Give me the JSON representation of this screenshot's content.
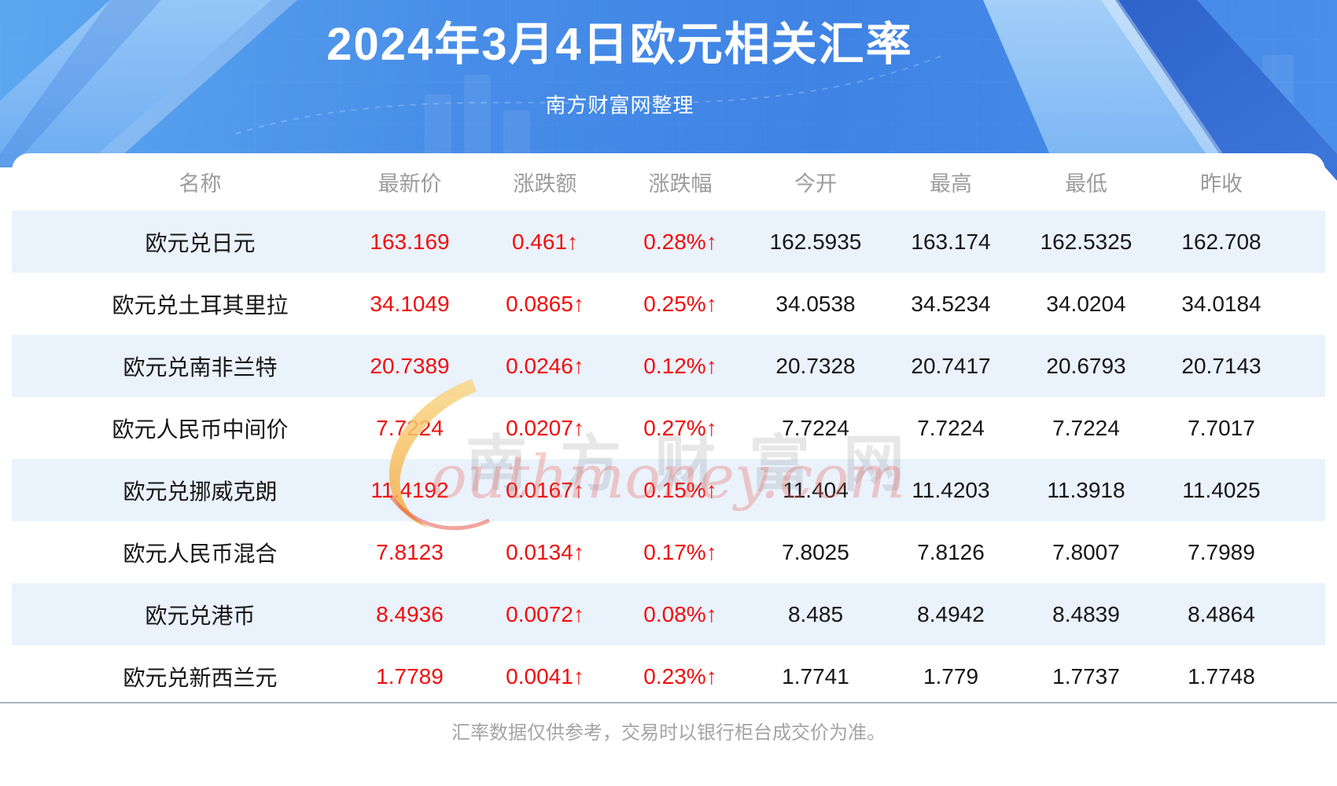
{
  "hero": {
    "title": "2024年3月4日欧元相关汇率",
    "subtitle": "南方财富网整理"
  },
  "chart_data": {
    "type": "table",
    "title": "2024年3月4日欧元相关汇率",
    "subtitle": "南方财富网整理",
    "columns": [
      "名称",
      "最新价",
      "涨跌额",
      "涨跌幅",
      "今开",
      "最高",
      "最低",
      "昨收"
    ],
    "rows": [
      [
        "欧元兑日元",
        "163.169",
        "0.461↑",
        "0.28%↑",
        "162.5935",
        "163.174",
        "162.5325",
        "162.708"
      ],
      [
        "欧元兑土耳其里拉",
        "34.1049",
        "0.0865↑",
        "0.25%↑",
        "34.0538",
        "34.5234",
        "34.0204",
        "34.0184"
      ],
      [
        "欧元兑南非兰特",
        "20.7389",
        "0.0246↑",
        "0.12%↑",
        "20.7328",
        "20.7417",
        "20.6793",
        "20.7143"
      ],
      [
        "欧元人民币中间价",
        "7.7224",
        "0.0207↑",
        "0.27%↑",
        "7.7224",
        "7.7224",
        "7.7224",
        "7.7017"
      ],
      [
        "欧元兑挪威克朗",
        "11.4192",
        "0.0167↑",
        "0.15%↑",
        "11.404",
        "11.4203",
        "11.3918",
        "11.4025"
      ],
      [
        "欧元人民币混合",
        "7.8123",
        "0.0134↑",
        "0.17%↑",
        "7.8025",
        "7.8126",
        "7.8007",
        "7.7989"
      ],
      [
        "欧元兑港币",
        "8.4936",
        "0.0072↑",
        "0.08%↑",
        "8.485",
        "8.4942",
        "8.4839",
        "8.4864"
      ],
      [
        "欧元兑新西兰元",
        "1.7789",
        "0.0041↑",
        "0.23%↑",
        "1.7741",
        "1.779",
        "1.7737",
        "1.7748"
      ]
    ]
  },
  "watermark": {
    "cn": "南方财富网",
    "en": "outhmoney.com"
  },
  "footer": {
    "disclaimer": "汇率数据仅供参考，交易时以银行柜台成交价为准。"
  },
  "colors": {
    "up_red": "#f20c0c",
    "row_stripe": "#eaf2fc",
    "header_gray": "#9c9c9c",
    "hero_blue": "#4285e5",
    "divider": "#a9b6c1",
    "swoosh_yellow": "#f4a93d"
  }
}
